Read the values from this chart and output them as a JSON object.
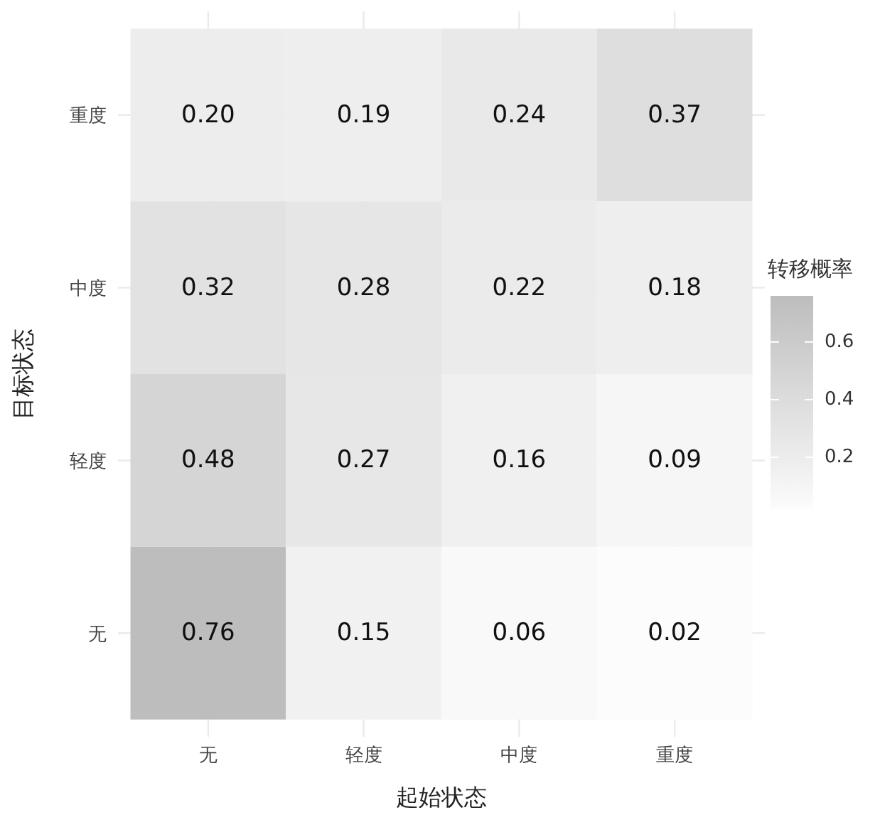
{
  "chart_data": {
    "type": "heatmap",
    "xlabel": "起始状态",
    "ylabel": "目标状态",
    "clabel": "转移概率",
    "categories": [
      "无",
      "轻度",
      "中度",
      "重度"
    ],
    "y_categories": [
      "重度",
      "中度",
      "轻度",
      "无"
    ],
    "cells": [
      [
        0.2,
        0.19,
        0.24,
        0.37
      ],
      [
        0.32,
        0.28,
        0.22,
        0.18
      ],
      [
        0.48,
        0.27,
        0.16,
        0.09
      ],
      [
        0.76,
        0.15,
        0.06,
        0.02
      ]
    ],
    "cell_labels": [
      [
        "0.20",
        "0.19",
        "0.24",
        "0.37"
      ],
      [
        "0.32",
        "0.28",
        "0.22",
        "0.18"
      ],
      [
        "0.48",
        "0.27",
        "0.16",
        "0.09"
      ],
      [
        "0.76",
        "0.15",
        "0.06",
        "0.02"
      ]
    ],
    "colors": [
      "#fcfcfc",
      "#bdbdbd"
    ],
    "clim": [
      0.02,
      0.76
    ],
    "cticks": [
      0.2,
      0.4,
      0.6
    ],
    "grid": true
  }
}
